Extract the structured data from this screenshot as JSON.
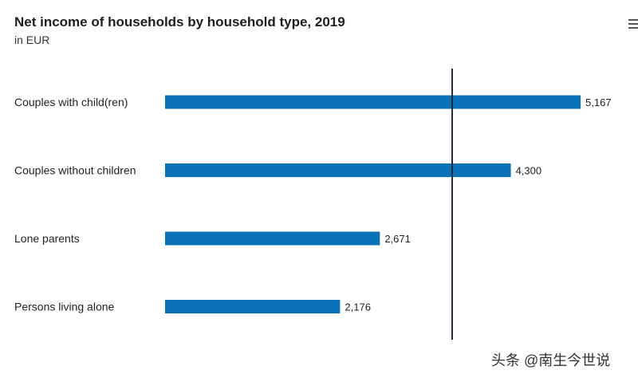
{
  "chart_data": {
    "type": "bar",
    "orientation": "horizontal",
    "title": "Net income of households by household type, 2019",
    "subtitle": "in EUR",
    "categories": [
      "Couples with child(ren)",
      "Couples without children",
      "Lone parents",
      "Persons living alone"
    ],
    "values": [
      5167,
      4300,
      2671,
      2176
    ],
    "value_labels": [
      "5,167",
      "4,300",
      "2,671",
      "2,176"
    ],
    "reference_line": 3570,
    "xlim": [
      0,
      5167
    ],
    "grid": false,
    "bar_color": "#0a72b8",
    "reference_line_color": "#1a2a3a"
  },
  "watermark": "头条 @南生今世说"
}
